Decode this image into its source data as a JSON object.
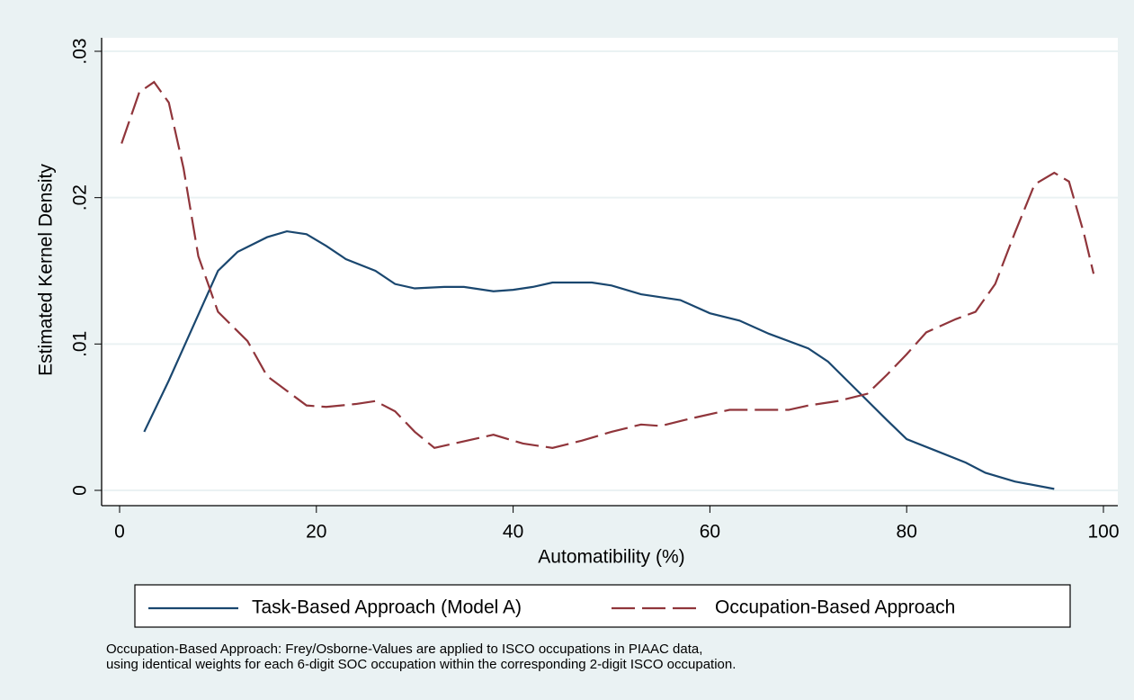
{
  "chart_data": {
    "type": "line",
    "xlabel": "Automatibility (%)",
    "ylabel": "Estimated Kernel Density",
    "xlim": [
      0,
      100
    ],
    "xticks": [
      0,
      20,
      40,
      60,
      80,
      100
    ],
    "ylim": [
      0,
      0.03
    ],
    "yticks": [
      0,
      {
        "value": 0.01,
        "label": ".01"
      },
      {
        "value": 0.02,
        "label": ".02"
      },
      {
        "value": 0.03,
        "label": ".03"
      }
    ],
    "grid": true,
    "legend": "bottom",
    "series": [
      {
        "name": "Task-Based Approach (Model A)",
        "color": "#1a476f",
        "line_style": "solid",
        "x": [
          2.5,
          5,
          8,
          10,
          12,
          15,
          17,
          19,
          21,
          23,
          26,
          28,
          30,
          33,
          35,
          38,
          40,
          42,
          44,
          48,
          50,
          53,
          57,
          60,
          63,
          66,
          70,
          72,
          75,
          78,
          80,
          83,
          86,
          88,
          91,
          95
        ],
        "values": [
          0.004,
          0.0075,
          0.012,
          0.015,
          0.0163,
          0.0173,
          0.0177,
          0.0175,
          0.0167,
          0.0158,
          0.015,
          0.0141,
          0.0138,
          0.0139,
          0.0139,
          0.0136,
          0.0137,
          0.0139,
          0.0142,
          0.0142,
          0.014,
          0.0134,
          0.013,
          0.0121,
          0.0116,
          0.0107,
          0.0097,
          0.0088,
          0.0068,
          0.0048,
          0.0035,
          0.0027,
          0.0019,
          0.0012,
          0.0006,
          0.0001
        ]
      },
      {
        "name": "Occupation-Based Approach",
        "color": "#90353b",
        "line_style": "dashed",
        "x": [
          0.2,
          2,
          3.5,
          5,
          6.5,
          8,
          10,
          13,
          15,
          17,
          19,
          21,
          24,
          26,
          28,
          30,
          32,
          34,
          38,
          41,
          44,
          47,
          50,
          53,
          55,
          58,
          62,
          65,
          68,
          70,
          73,
          76,
          78,
          80,
          82,
          85,
          87,
          89,
          91,
          93,
          95,
          96.5,
          98,
          99
        ],
        "values": [
          0.0237,
          0.0272,
          0.0279,
          0.0265,
          0.022,
          0.016,
          0.0122,
          0.0102,
          0.0078,
          0.0068,
          0.0058,
          0.0057,
          0.0059,
          0.0061,
          0.0054,
          0.004,
          0.0029,
          0.0032,
          0.0038,
          0.0032,
          0.0029,
          0.0034,
          0.004,
          0.0045,
          0.0044,
          0.0049,
          0.0055,
          0.0055,
          0.0055,
          0.0058,
          0.0061,
          0.0066,
          0.0079,
          0.0093,
          0.0108,
          0.0117,
          0.0122,
          0.0141,
          0.0176,
          0.0209,
          0.0217,
          0.0211,
          0.0176,
          0.0148
        ]
      }
    ],
    "notes": [
      "Occupation-Based Approach: Frey/Osborne-Values are applied to ISCO occupations in PIAAC data,",
      "using identical weights for each 6-digit SOC occupation within the corresponding 2-digit ISCO occupation."
    ]
  }
}
